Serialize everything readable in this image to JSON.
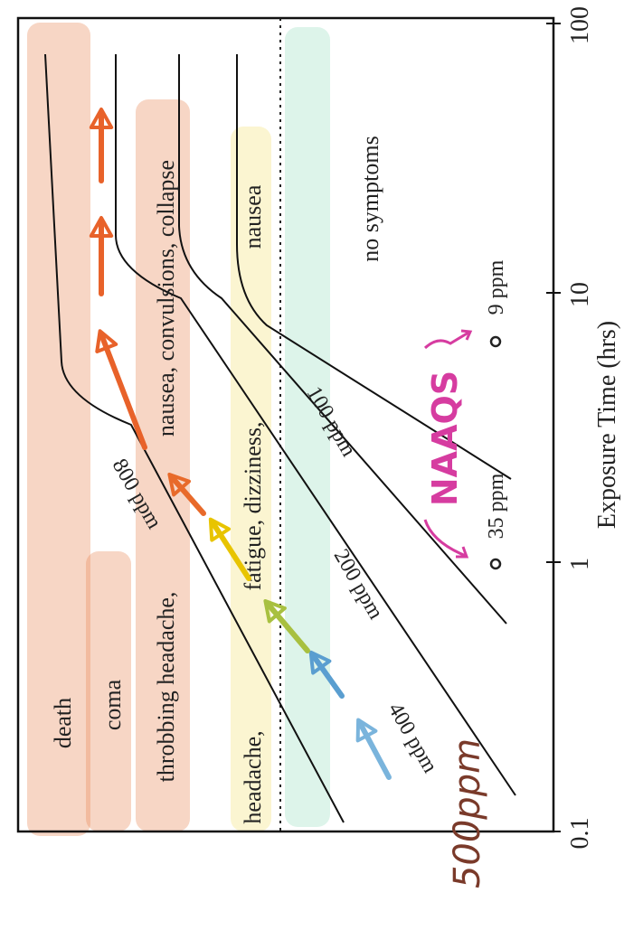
{
  "chart_data": {
    "type": "line",
    "orientation": "rotated-90-clockwise",
    "xlabel": "Exposure Time (hrs)",
    "x_scale": "log",
    "xlim": [
      0.1,
      100
    ],
    "x_ticks": [
      {
        "value": 0.1,
        "label": "0.1"
      },
      {
        "value": 1,
        "label": "1"
      },
      {
        "value": 10,
        "label": "10"
      },
      {
        "value": 100,
        "label": "100"
      }
    ],
    "series": [
      {
        "name": "800 ppm",
        "points": [
          [
            0.1,
            150
          ],
          [
            0.62,
            900
          ],
          [
            3.0,
            4400
          ],
          [
            3.8,
            4600
          ],
          [
            60,
            4600
          ]
        ]
      },
      {
        "name": "400 ppm",
        "points": [
          [
            0.1,
            90
          ],
          [
            0.55,
            600
          ],
          [
            2.8,
            3000
          ],
          [
            3.6,
            3300
          ],
          [
            60,
            3300
          ]
        ]
      },
      {
        "name": "200 ppm",
        "points": [
          [
            0.1,
            40
          ],
          [
            0.6,
            330
          ],
          [
            3.0,
            1650
          ],
          [
            3.8,
            2050
          ],
          [
            60,
            2050
          ]
        ]
      },
      {
        "name": "100 ppm",
        "points": [
          [
            0.1,
            10
          ],
          [
            0.8,
            280
          ],
          [
            4.0,
            1350
          ],
          [
            5.5,
            1600
          ],
          [
            60,
            1600
          ]
        ]
      }
    ],
    "reference_line": {
      "style": "dotted",
      "label": ""
    },
    "symptom_zones": [
      {
        "label": "death",
        "color": "#e88a5a"
      },
      {
        "label": "coma",
        "color": "#e88a5a"
      },
      {
        "label": "throbbing headache,",
        "color": "#e88a5a"
      },
      {
        "label": "nausea, convulsions, collapse",
        "color": "#e88a5a"
      },
      {
        "label": "headache,",
        "color": "#f4e27a"
      },
      {
        "label": "fatigue, dizziness,",
        "color": "#f4e27a"
      },
      {
        "label": "nausea",
        "color": "#f4e27a"
      },
      {
        "label": "no symptoms",
        "color": "#9fe0c4"
      }
    ],
    "standards": [
      {
        "label": "35 ppm",
        "hours": 1
      },
      {
        "label": "9 ppm",
        "hours": 8
      }
    ],
    "annotations": {
      "naaqs": "NAAQS",
      "handwritten_ppm": "500ppm"
    },
    "arrows": [
      {
        "color": "#7ab4dc"
      },
      {
        "color": "#5a9ed0"
      },
      {
        "color": "#a8c040"
      },
      {
        "color": "#e8c400"
      },
      {
        "color": "#e86a2a"
      },
      {
        "color": "#e8622a"
      },
      {
        "color": "#e8622a"
      },
      {
        "color": "#e8622a"
      }
    ]
  }
}
